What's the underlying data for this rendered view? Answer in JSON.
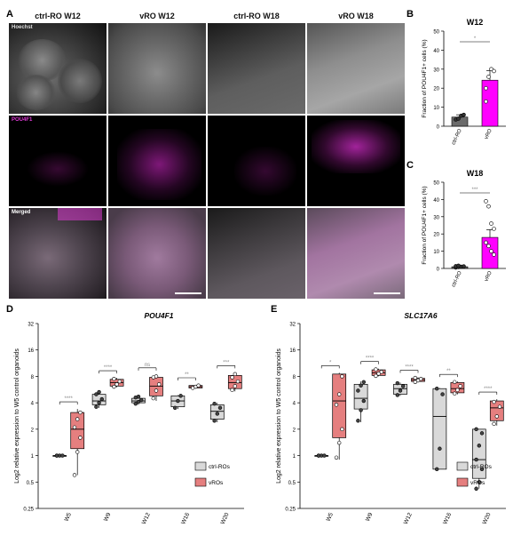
{
  "panels": {
    "A": "A",
    "B": "B",
    "C": "C",
    "D": "D",
    "E": "E"
  },
  "panelA": {
    "column_titles": [
      "ctrl-RO W12",
      "vRO W12",
      "ctrl-RO W18",
      "vRO W18"
    ],
    "row_labels": [
      "Hoechst",
      "POU4F1",
      "Merged"
    ],
    "colors": {
      "hoechst": "#bdbdbd",
      "pou4f1": "#e23bd9"
    }
  },
  "panelB": {
    "chart_data": {
      "type": "bar",
      "title": "W12",
      "ylabel": "Fraction of POU4F1+ cells (%)",
      "categories": [
        "ctrl-RO",
        "vRO"
      ],
      "values": [
        4.8,
        24.2
      ],
      "errors": [
        1.2,
        5.0
      ],
      "points": [
        [
          3.5,
          4.0,
          5.5,
          6.0
        ],
        [
          20,
          26,
          30,
          29,
          13
        ]
      ],
      "ylim": [
        0,
        50
      ],
      "yticks": [
        0,
        10,
        20,
        30,
        40,
        50
      ],
      "significance": "*",
      "colors": [
        "#6b6b6b",
        "#ff00ff"
      ]
    }
  },
  "panelC": {
    "chart_data": {
      "type": "bar",
      "title": "W18",
      "ylabel": "Fraction of POU4F1+ cells (%)",
      "categories": [
        "ctrl-RO",
        "vRO"
      ],
      "values": [
        1.0,
        18.0
      ],
      "errors": [
        0.4,
        4.5
      ],
      "points": [
        [
          0.5,
          0.8,
          1.0,
          1.2,
          1.3,
          1.6
        ],
        [
          39,
          36,
          26,
          23,
          15,
          13,
          10,
          8
        ]
      ],
      "ylim": [
        0,
        50
      ],
      "yticks": [
        0,
        10,
        20,
        30,
        40,
        50
      ],
      "significance": "***",
      "colors": [
        "#6b6b6b",
        "#ff00ff"
      ]
    }
  },
  "panelD": {
    "chart_data": {
      "type": "box",
      "title": "POU4F1",
      "ylabel": "Log2 relative expression to W5 control organoids",
      "yscale": "log2",
      "ylim": [
        0.25,
        32
      ],
      "yticks": [
        0.25,
        0.5,
        1,
        2,
        4,
        8,
        16,
        32
      ],
      "categories": [
        "W5",
        "W9",
        "W12",
        "W16",
        "W20"
      ],
      "significance": [
        "****",
        "****",
        "ns",
        "**",
        "***"
      ],
      "series": [
        {
          "name": "ctrl-ROs",
          "color": "#d9d9d9",
          "boxes": [
            {
              "min": 1,
              "q1": 1,
              "median": 1,
              "q3": 1,
              "max": 1,
              "points": [
                1,
                1,
                1,
                1
              ]
            },
            {
              "min": 3.5,
              "q1": 3.8,
              "median": 4.2,
              "q3": 5.0,
              "max": 5.5,
              "points": [
                3.6,
                4.0,
                4.4,
                5.0,
                5.3
              ]
            },
            {
              "min": 3.8,
              "q1": 4.0,
              "median": 4.2,
              "q3": 4.5,
              "max": 4.8,
              "points": [
                3.9,
                4.1,
                4.3,
                4.6,
                4.7
              ]
            },
            {
              "min": 3.4,
              "q1": 3.6,
              "median": 4.2,
              "q3": 4.8,
              "max": 4.9,
              "points": [
                3.5,
                4.2,
                4.8
              ]
            },
            {
              "min": 2.4,
              "q1": 2.6,
              "median": 3.2,
              "q3": 3.8,
              "max": 4.0,
              "points": [
                2.5,
                3.0,
                3.5,
                3.9
              ]
            }
          ]
        },
        {
          "name": "vROs",
          "color": "#e57f7f",
          "boxes": [
            {
              "min": 0.6,
              "q1": 1.2,
              "median": 2.0,
              "q3": 3.1,
              "max": 3.4,
              "points": [
                0.6,
                1.1,
                1.6,
                2.1,
                2.6,
                3.1
              ]
            },
            {
              "min": 6.0,
              "q1": 6.2,
              "median": 6.8,
              "q3": 7.4,
              "max": 7.7,
              "points": [
                6.1,
                6.5,
                7.0,
                7.5
              ]
            },
            {
              "min": 4.2,
              "q1": 4.8,
              "median": 6.2,
              "q3": 7.8,
              "max": 8.3,
              "points": [
                4.5,
                5.5,
                6.5,
                7.8,
                8.0
              ]
            },
            {
              "min": 5.8,
              "q1": 5.9,
              "median": 6.1,
              "q3": 6.3,
              "max": 6.4,
              "points": [
                5.9,
                6.1,
                6.3
              ]
            },
            {
              "min": 5.4,
              "q1": 5.8,
              "median": 6.8,
              "q3": 8.2,
              "max": 8.8,
              "points": [
                5.6,
                6.2,
                7.0,
                7.8,
                8.5
              ]
            }
          ]
        }
      ],
      "legend": [
        "ctrl-ROs",
        "vROs"
      ]
    }
  },
  "panelE": {
    "chart_data": {
      "type": "box",
      "title": "SLC17A6",
      "ylabel": "Log2 relative expression to W5 control organoids",
      "yscale": "log2",
      "ylim": [
        0.25,
        32
      ],
      "yticks": [
        0.25,
        0.5,
        1,
        2,
        4,
        8,
        16,
        32
      ],
      "categories": [
        "W5",
        "W9",
        "W12",
        "W16",
        "W20"
      ],
      "significance": [
        "*",
        "****",
        "****",
        "**",
        "****"
      ],
      "series": [
        {
          "name": "ctrl-ROs",
          "color": "#d9d9d9",
          "boxes": [
            {
              "min": 1,
              "q1": 1,
              "median": 1,
              "q3": 1,
              "max": 1,
              "points": [
                1,
                1,
                1,
                1
              ]
            },
            {
              "min": 2.4,
              "q1": 3.4,
              "median": 4.5,
              "q3": 6.5,
              "max": 7.0,
              "points": [
                2.5,
                3.3,
                4.2,
                5.5,
                6.3,
                6.9
              ]
            },
            {
              "min": 4.8,
              "q1": 5.0,
              "median": 5.8,
              "q3": 6.5,
              "max": 6.8,
              "points": [
                4.9,
                5.5,
                6.2,
                6.7
              ]
            },
            {
              "min": 0.7,
              "q1": 0.7,
              "median": 2.8,
              "q3": 5.8,
              "max": 5.9,
              "points": [
                0.7,
                1.2,
                5.0,
                5.8
              ]
            },
            {
              "min": 0.42,
              "q1": 0.55,
              "median": 0.9,
              "q3": 2.0,
              "max": 2.0,
              "points": [
                0.42,
                0.5,
                0.7,
                0.9,
                1.3,
                1.8,
                2.0
              ]
            }
          ]
        },
        {
          "name": "vROs",
          "color": "#e57f7f",
          "boxes": [
            {
              "min": 0.9,
              "q1": 1.6,
              "median": 4.2,
              "q3": 8.5,
              "max": 8.8,
              "points": [
                0.95,
                1.4,
                2.0,
                3.8,
                5.0,
                8.0
              ]
            },
            {
              "min": 8.0,
              "q1": 8.2,
              "median": 8.8,
              "q3": 9.5,
              "max": 9.8,
              "points": [
                8.1,
                8.6,
                9.0,
                9.6
              ]
            },
            {
              "min": 6.8,
              "q1": 7.0,
              "median": 7.3,
              "q3": 7.6,
              "max": 7.8,
              "points": [
                6.9,
                7.2,
                7.5,
                7.7
              ]
            },
            {
              "min": 5.0,
              "q1": 5.2,
              "median": 5.8,
              "q3": 6.8,
              "max": 7.0,
              "points": [
                5.1,
                5.6,
                6.2,
                6.9
              ]
            },
            {
              "min": 2.2,
              "q1": 2.5,
              "median": 3.5,
              "q3": 4.2,
              "max": 4.4,
              "points": [
                2.3,
                2.8,
                3.6,
                4.1
              ]
            }
          ]
        }
      ],
      "legend": [
        "ctrl-ROs",
        "vROs"
      ]
    }
  }
}
